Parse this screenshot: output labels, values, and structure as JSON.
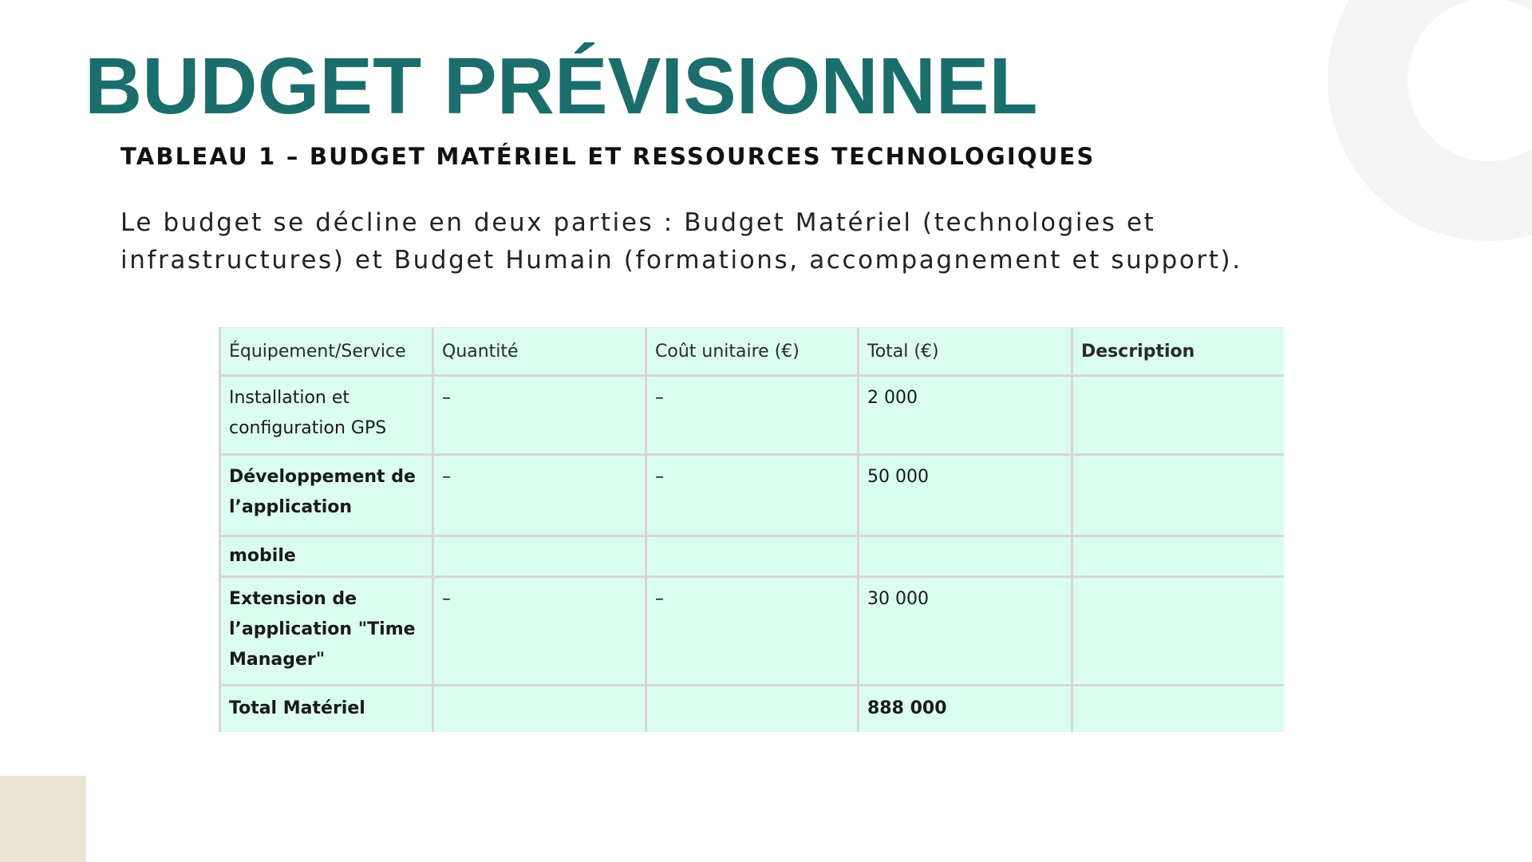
{
  "slide": {
    "title": "BUDGET PRÉVISIONNEL",
    "subtitle": "TABLEAU 1 – BUDGET MATÉRIEL ET RESSOURCES TECHNOLOGIQUES",
    "intro_line1": "Le budget se décline en deux parties : Budget Matériel (technologies et",
    "intro_line2": "infrastructures) et Budget Humain (formations, accompagnement et support).",
    "colors": {
      "title": "#1b6e6b",
      "table_background": "#dbfdf0",
      "table_border": "#d6d6d6",
      "deco_ring": "#f4f4f4",
      "deco_square": "#e9e4d4"
    }
  },
  "table": {
    "headers": [
      "Équipement/Service",
      "Quantité",
      "Coût unitaire (€)",
      "Total (€)",
      "Description"
    ],
    "rows": [
      {
        "service_line1": "Installation et",
        "service_line2": "configuration GPS",
        "quantity": "–",
        "unit_cost": "–",
        "total": "2 000",
        "description": ""
      },
      {
        "service_line1": "Développement de",
        "service_line2": "l’application",
        "quantity": "–",
        "unit_cost": "–",
        "total": "50 000",
        "description": ""
      },
      {
        "service_line1": "mobile",
        "quantity": "",
        "unit_cost": "",
        "total": "",
        "description": ""
      },
      {
        "service_line1": "Extension de",
        "service_line2": "l’application \"Time",
        "service_line3": "Manager\"",
        "quantity": "–",
        "unit_cost": "–",
        "total": "30 000",
        "description": ""
      },
      {
        "service_line1": "Total Matériel",
        "quantity": "",
        "unit_cost": "",
        "total": "888 000",
        "description": ""
      }
    ]
  }
}
